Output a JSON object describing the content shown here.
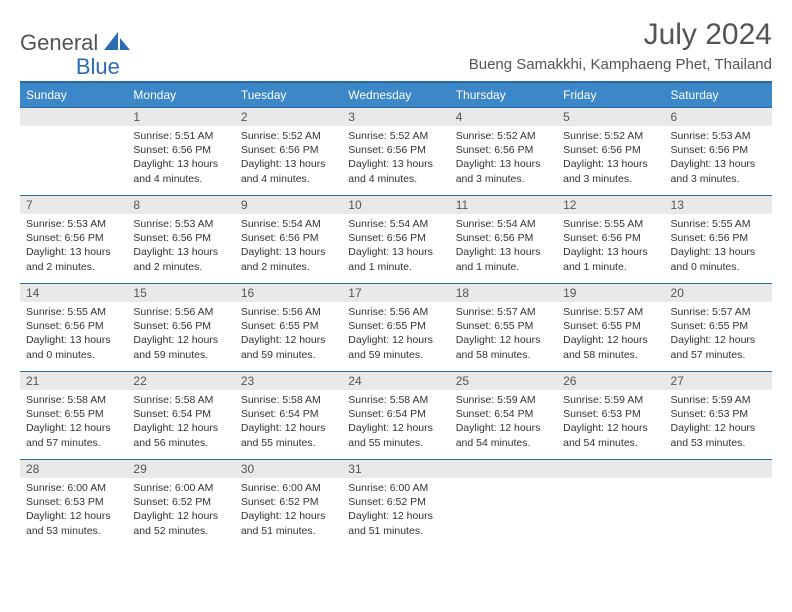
{
  "brand": {
    "part1": "General",
    "part2": "Blue"
  },
  "title": "July 2024",
  "location": "Bueng Samakkhi, Kamphaeng Phet, Thailand",
  "colors": {
    "header_bg": "#3b87c8",
    "header_border": "#2b6aa3",
    "daynum_bg": "#e9e9e9",
    "text": "#333333",
    "brand_gray": "#545454",
    "brand_blue": "#2c6cb0"
  },
  "weekdays": [
    "Sunday",
    "Monday",
    "Tuesday",
    "Wednesday",
    "Thursday",
    "Friday",
    "Saturday"
  ],
  "layout": {
    "first_weekday_index": 1,
    "days_in_month": 31,
    "rows": 5,
    "cols": 7
  },
  "typography": {
    "title_size": 30,
    "location_size": 15,
    "weekday_size": 12,
    "daynum_size": 12,
    "body_size": 10.5
  },
  "days": {
    "1": {
      "sunrise": "5:51 AM",
      "sunset": "6:56 PM",
      "daylight": "13 hours and 4 minutes."
    },
    "2": {
      "sunrise": "5:52 AM",
      "sunset": "6:56 PM",
      "daylight": "13 hours and 4 minutes."
    },
    "3": {
      "sunrise": "5:52 AM",
      "sunset": "6:56 PM",
      "daylight": "13 hours and 4 minutes."
    },
    "4": {
      "sunrise": "5:52 AM",
      "sunset": "6:56 PM",
      "daylight": "13 hours and 3 minutes."
    },
    "5": {
      "sunrise": "5:52 AM",
      "sunset": "6:56 PM",
      "daylight": "13 hours and 3 minutes."
    },
    "6": {
      "sunrise": "5:53 AM",
      "sunset": "6:56 PM",
      "daylight": "13 hours and 3 minutes."
    },
    "7": {
      "sunrise": "5:53 AM",
      "sunset": "6:56 PM",
      "daylight": "13 hours and 2 minutes."
    },
    "8": {
      "sunrise": "5:53 AM",
      "sunset": "6:56 PM",
      "daylight": "13 hours and 2 minutes."
    },
    "9": {
      "sunrise": "5:54 AM",
      "sunset": "6:56 PM",
      "daylight": "13 hours and 2 minutes."
    },
    "10": {
      "sunrise": "5:54 AM",
      "sunset": "6:56 PM",
      "daylight": "13 hours and 1 minute."
    },
    "11": {
      "sunrise": "5:54 AM",
      "sunset": "6:56 PM",
      "daylight": "13 hours and 1 minute."
    },
    "12": {
      "sunrise": "5:55 AM",
      "sunset": "6:56 PM",
      "daylight": "13 hours and 1 minute."
    },
    "13": {
      "sunrise": "5:55 AM",
      "sunset": "6:56 PM",
      "daylight": "13 hours and 0 minutes."
    },
    "14": {
      "sunrise": "5:55 AM",
      "sunset": "6:56 PM",
      "daylight": "13 hours and 0 minutes."
    },
    "15": {
      "sunrise": "5:56 AM",
      "sunset": "6:56 PM",
      "daylight": "12 hours and 59 minutes."
    },
    "16": {
      "sunrise": "5:56 AM",
      "sunset": "6:55 PM",
      "daylight": "12 hours and 59 minutes."
    },
    "17": {
      "sunrise": "5:56 AM",
      "sunset": "6:55 PM",
      "daylight": "12 hours and 59 minutes."
    },
    "18": {
      "sunrise": "5:57 AM",
      "sunset": "6:55 PM",
      "daylight": "12 hours and 58 minutes."
    },
    "19": {
      "sunrise": "5:57 AM",
      "sunset": "6:55 PM",
      "daylight": "12 hours and 58 minutes."
    },
    "20": {
      "sunrise": "5:57 AM",
      "sunset": "6:55 PM",
      "daylight": "12 hours and 57 minutes."
    },
    "21": {
      "sunrise": "5:58 AM",
      "sunset": "6:55 PM",
      "daylight": "12 hours and 57 minutes."
    },
    "22": {
      "sunrise": "5:58 AM",
      "sunset": "6:54 PM",
      "daylight": "12 hours and 56 minutes."
    },
    "23": {
      "sunrise": "5:58 AM",
      "sunset": "6:54 PM",
      "daylight": "12 hours and 55 minutes."
    },
    "24": {
      "sunrise": "5:58 AM",
      "sunset": "6:54 PM",
      "daylight": "12 hours and 55 minutes."
    },
    "25": {
      "sunrise": "5:59 AM",
      "sunset": "6:54 PM",
      "daylight": "12 hours and 54 minutes."
    },
    "26": {
      "sunrise": "5:59 AM",
      "sunset": "6:53 PM",
      "daylight": "12 hours and 54 minutes."
    },
    "27": {
      "sunrise": "5:59 AM",
      "sunset": "6:53 PM",
      "daylight": "12 hours and 53 minutes."
    },
    "28": {
      "sunrise": "6:00 AM",
      "sunset": "6:53 PM",
      "daylight": "12 hours and 53 minutes."
    },
    "29": {
      "sunrise": "6:00 AM",
      "sunset": "6:52 PM",
      "daylight": "12 hours and 52 minutes."
    },
    "30": {
      "sunrise": "6:00 AM",
      "sunset": "6:52 PM",
      "daylight": "12 hours and 51 minutes."
    },
    "31": {
      "sunrise": "6:00 AM",
      "sunset": "6:52 PM",
      "daylight": "12 hours and 51 minutes."
    }
  }
}
